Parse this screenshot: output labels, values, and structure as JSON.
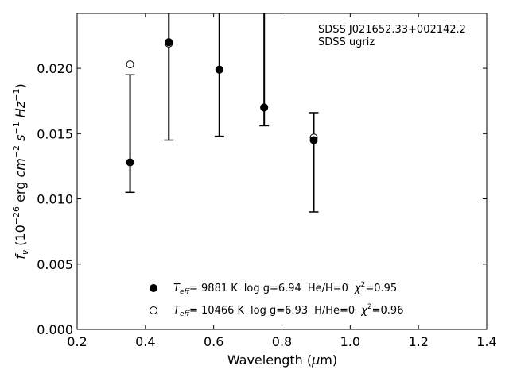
{
  "chart_data": {
    "type": "scatter",
    "xlabel": "Wavelength (μm)",
    "ylabel": "f_ν (10^-26 erg cm^-2 s^-1 Hz^-1)",
    "xlim": [
      0.2,
      1.4
    ],
    "ylim": [
      0.0,
      0.0242
    ],
    "x_ticks": [
      0.2,
      0.4,
      0.6,
      0.8,
      1.0,
      1.2,
      1.4
    ],
    "x_tick_labels": [
      "0.2",
      "0.4",
      "0.6",
      "0.8",
      "1.0",
      "1.2",
      "1.4"
    ],
    "y_ticks": [
      0.0,
      0.005,
      0.01,
      0.015,
      0.02
    ],
    "y_tick_labels": [
      "0.000",
      "0.005",
      "0.010",
      "0.015",
      "0.020"
    ],
    "grid": false,
    "annotations": [
      "SDSS J021652.33+002142.2",
      "SDSS ugriz"
    ],
    "observed": {
      "x": [
        0.3551,
        0.4686,
        0.6166,
        0.748,
        0.8932
      ],
      "y": [
        0.0128,
        0.0221,
        0.0199,
        0.017,
        0.0146
      ],
      "y_low": [
        0.0105,
        0.0145,
        0.0148,
        0.0156,
        0.009
      ],
      "y_high": [
        0.0195,
        0.025,
        0.025,
        0.025,
        0.0166
      ]
    },
    "series": [
      {
        "name": "T_eff= 9881 K log g=6.94 He/H=0 χ2=0.95",
        "marker": "filled",
        "x": [
          0.3551,
          0.4686,
          0.6166,
          0.748,
          0.8932
        ],
        "y": [
          0.0128,
          0.022,
          0.0199,
          0.017,
          0.0145
        ]
      },
      {
        "name": "T_eff= 10466 K log g=6.93 H/He=0 χ2=0.96",
        "marker": "open",
        "x": [
          0.3551,
          0.4686,
          0.6166,
          0.748,
          0.8932
        ],
        "y": [
          0.0203,
          0.0219,
          0.0199,
          0.017,
          0.0147
        ]
      }
    ],
    "legend": {
      "placement": "lower-center",
      "entries": [
        {
          "teff_value": "=  9881 K",
          "logg": "log g=6.94",
          "comp": "He/H=0",
          "chi": "=0.95"
        },
        {
          "teff_value": "= 10466 K",
          "logg": "log g=6.93",
          "comp": "H/He=0",
          "chi": "=0.96"
        }
      ]
    }
  }
}
